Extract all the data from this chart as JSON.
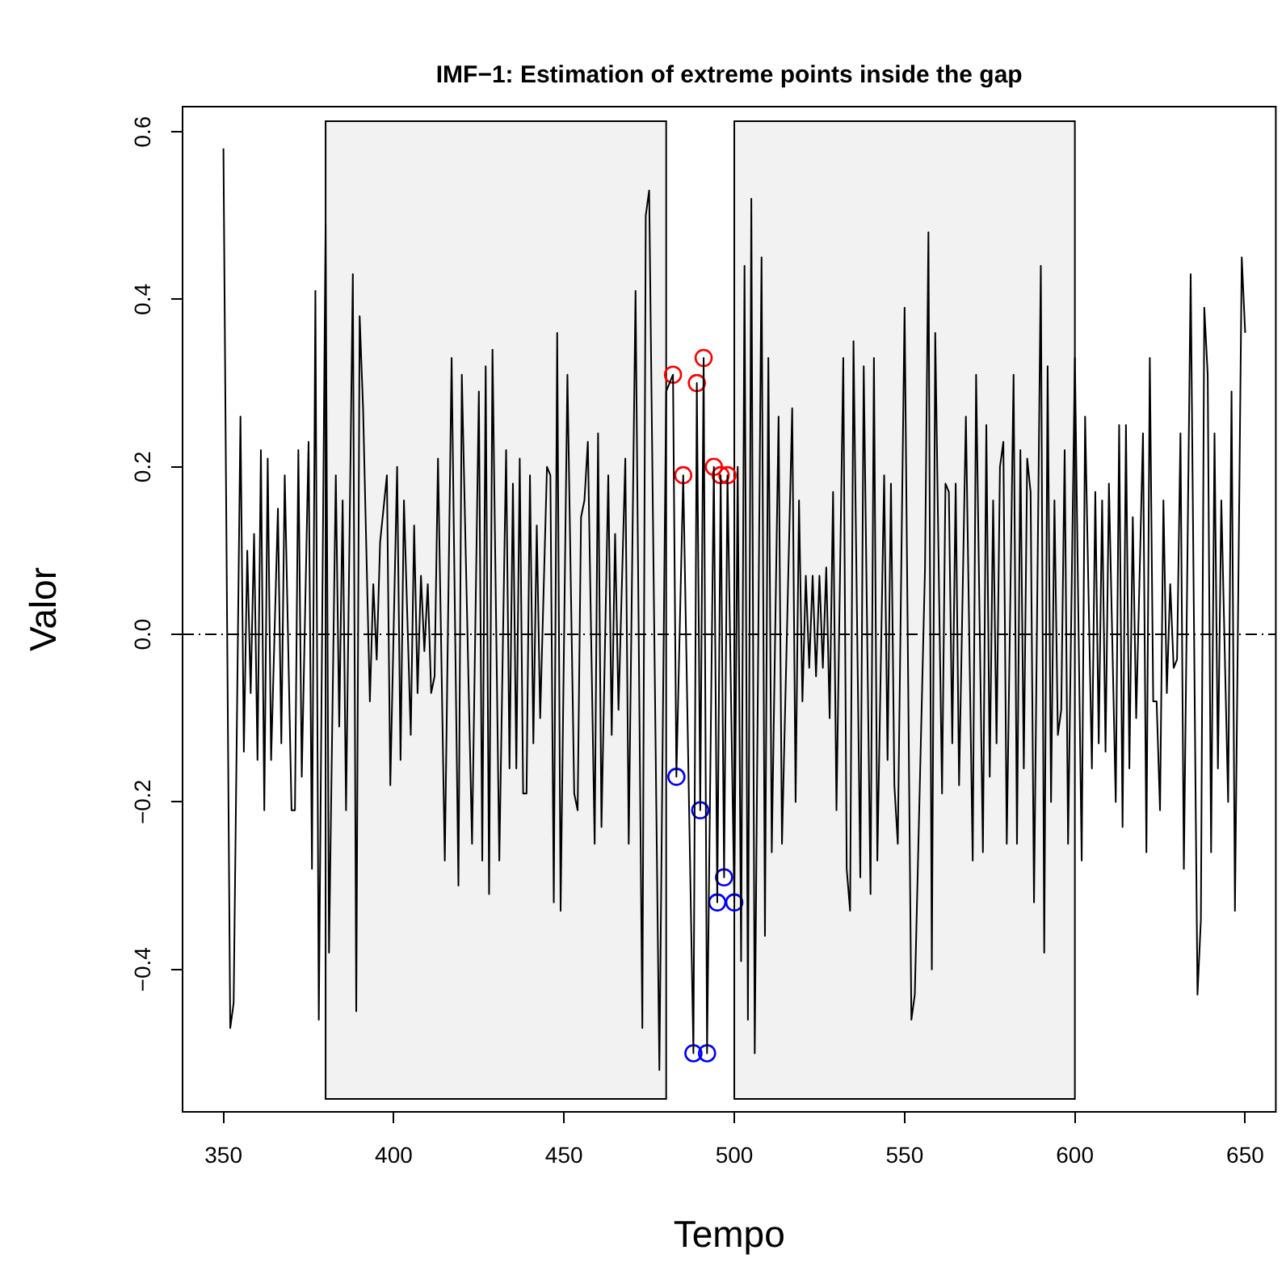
{
  "chart_data": {
    "type": "line",
    "title": "IMF−1: Estimation of extreme points inside the gap",
    "xlabel": "Tempo",
    "ylabel": "Valor",
    "xlim": [
      338,
      659
    ],
    "ylim": [
      -0.57,
      0.63
    ],
    "xticks": [
      350,
      400,
      450,
      500,
      550,
      600,
      650
    ],
    "yticks": [
      {
        "value": -0.4,
        "label": "−0.4"
      },
      {
        "value": -0.2,
        "label": "−0.2"
      },
      {
        "value": 0,
        "label": "0.0"
      },
      0.2,
      0.4,
      0.6
    ],
    "grid": false,
    "legend": false,
    "ref_lines": [
      {
        "axis": "y",
        "value": 0,
        "color": "#000000",
        "line_style": "dashed"
      }
    ],
    "bands": [
      {
        "axis": "x",
        "from": 380,
        "to": 480,
        "color": "#000000"
      },
      {
        "axis": "x",
        "from": 500,
        "to": 600,
        "color": "#000000"
      }
    ],
    "series": [
      {
        "color": "#000000",
        "marker": "none",
        "x": [
          350,
          352,
          353,
          355,
          356,
          357,
          358,
          359,
          360,
          361,
          362,
          363,
          364,
          366,
          367,
          368,
          370,
          371,
          372,
          373,
          375,
          376,
          377,
          378,
          380,
          381,
          383,
          384,
          385,
          386,
          388,
          389,
          390,
          391,
          393,
          394,
          395,
          396,
          398,
          399,
          401,
          402,
          403,
          405,
          406,
          407,
          408,
          409,
          410,
          411,
          412,
          413,
          415,
          417,
          419,
          420,
          423,
          425,
          426,
          427,
          428,
          429,
          431,
          433,
          434,
          435,
          436,
          437,
          438,
          439,
          440,
          441,
          442,
          443,
          445,
          446,
          447,
          448,
          449,
          451,
          453,
          454,
          455,
          456,
          457,
          459,
          460,
          461,
          463,
          464,
          465,
          466,
          468,
          469,
          471,
          473,
          474,
          475,
          478,
          480,
          482,
          483,
          485,
          488,
          489,
          490,
          491,
          492,
          494,
          495,
          496,
          497,
          498,
          500,
          501,
          502,
          503,
          504,
          505,
          506,
          508,
          509,
          510,
          511,
          513,
          514,
          517,
          518,
          519,
          520,
          521,
          522,
          523,
          524,
          525,
          526,
          527,
          528,
          529,
          530,
          532,
          533,
          534,
          535,
          537,
          538,
          540,
          541,
          542,
          544,
          545,
          546,
          547,
          548,
          550,
          552,
          553,
          556,
          557,
          558,
          559,
          561,
          562,
          563,
          564,
          565,
          566,
          568,
          570,
          571,
          573,
          574,
          575,
          576,
          577,
          578,
          579,
          580,
          582,
          583,
          584,
          585,
          586,
          587,
          588,
          590,
          591,
          592,
          593,
          594,
          595,
          596,
          597,
          598,
          600,
          602,
          603,
          605,
          606,
          607,
          608,
          609,
          610,
          612,
          613,
          614,
          615,
          616,
          617,
          618,
          620,
          621,
          622,
          623,
          624,
          625,
          626,
          627,
          628,
          629,
          630,
          631,
          632,
          634,
          636,
          637,
          638,
          639,
          640,
          641,
          642,
          643,
          645,
          646,
          647,
          649,
          650
        ],
        "values": [
          0.58,
          -0.47,
          -0.44,
          0.26,
          -0.14,
          0.1,
          -0.07,
          0.12,
          -0.15,
          0.22,
          -0.21,
          0.21,
          -0.15,
          0.15,
          -0.13,
          0.19,
          -0.21,
          -0.21,
          0.22,
          -0.17,
          0.23,
          -0.28,
          0.41,
          -0.46,
          0.49,
          -0.38,
          0.19,
          -0.11,
          0.16,
          -0.21,
          0.43,
          -0.45,
          0.38,
          0.27,
          -0.08,
          0.06,
          -0.03,
          0.11,
          0.19,
          -0.18,
          0.2,
          -0.15,
          0.16,
          -0.12,
          0.13,
          -0.07,
          0.07,
          -0.02,
          0.06,
          -0.07,
          -0.05,
          0.21,
          -0.27,
          0.33,
          -0.3,
          0.31,
          -0.25,
          0.29,
          -0.27,
          0.32,
          -0.31,
          0.34,
          -0.27,
          0.22,
          -0.16,
          0.18,
          -0.16,
          0.21,
          -0.19,
          -0.19,
          0.19,
          -0.13,
          0.13,
          -0.1,
          0.2,
          0.19,
          -0.32,
          0.36,
          -0.33,
          0.31,
          -0.19,
          -0.21,
          0.14,
          0.16,
          0.23,
          -0.25,
          0.24,
          -0.23,
          0.19,
          -0.12,
          0.12,
          -0.09,
          0.21,
          -0.25,
          0.41,
          -0.47,
          0.5,
          0.53,
          -0.52,
          0.29,
          0.31,
          -0.17,
          0.19,
          -0.5,
          0.3,
          -0.21,
          0.33,
          -0.5,
          0.2,
          -0.32,
          0.19,
          -0.29,
          0.19,
          -0.32,
          0.2,
          -0.39,
          0.44,
          -0.46,
          0.52,
          -0.5,
          0.45,
          -0.36,
          0.33,
          -0.26,
          0.26,
          -0.25,
          0.27,
          -0.2,
          0.16,
          -0.08,
          0.07,
          -0.04,
          0.07,
          -0.05,
          0.07,
          -0.04,
          0.08,
          -0.1,
          0.17,
          -0.21,
          0.33,
          -0.28,
          -0.33,
          0.35,
          -0.29,
          0.32,
          -0.31,
          0.33,
          -0.27,
          0.19,
          -0.15,
          0.18,
          -0.18,
          -0.25,
          0.39,
          -0.46,
          -0.43,
          0.08,
          0.48,
          -0.4,
          0.36,
          -0.19,
          0.18,
          0.17,
          -0.13,
          0.18,
          -0.18,
          0.26,
          -0.27,
          0.31,
          -0.26,
          0.25,
          -0.17,
          0.16,
          -0.13,
          0.2,
          0.23,
          -0.25,
          0.31,
          -0.25,
          0.22,
          -0.16,
          0.21,
          0.17,
          -0.32,
          0.44,
          -0.38,
          0.32,
          -0.2,
          0.16,
          -0.12,
          -0.09,
          0.22,
          -0.25,
          0.33,
          -0.27,
          0.26,
          -0.16,
          0.17,
          -0.13,
          0.16,
          -0.14,
          0.18,
          -0.2,
          0.25,
          -0.23,
          0.25,
          -0.16,
          0.14,
          -0.1,
          0.24,
          -0.26,
          0.33,
          -0.08,
          -0.08,
          -0.21,
          0.16,
          -0.07,
          0.06,
          -0.04,
          -0.03,
          0.24,
          -0.28,
          0.43,
          -0.43,
          -0.34,
          0.39,
          0.31,
          -0.26,
          0.24,
          -0.16,
          0.16,
          -0.2,
          0.29,
          -0.33,
          0.45,
          0.36
        ]
      },
      {
        "type": "scatter",
        "color": "#ff0000",
        "marker": "circle",
        "x": [
          482,
          485,
          489,
          491,
          494,
          496,
          498
        ],
        "values": [
          0.31,
          0.19,
          0.3,
          0.33,
          0.2,
          0.19,
          0.19
        ]
      },
      {
        "type": "scatter",
        "color": "#0000ff",
        "marker": "circle",
        "x": [
          483,
          488,
          490,
          492,
          495,
          497,
          500
        ],
        "values": [
          -0.17,
          -0.5,
          -0.21,
          -0.5,
          -0.32,
          -0.29,
          -0.32
        ]
      }
    ]
  }
}
